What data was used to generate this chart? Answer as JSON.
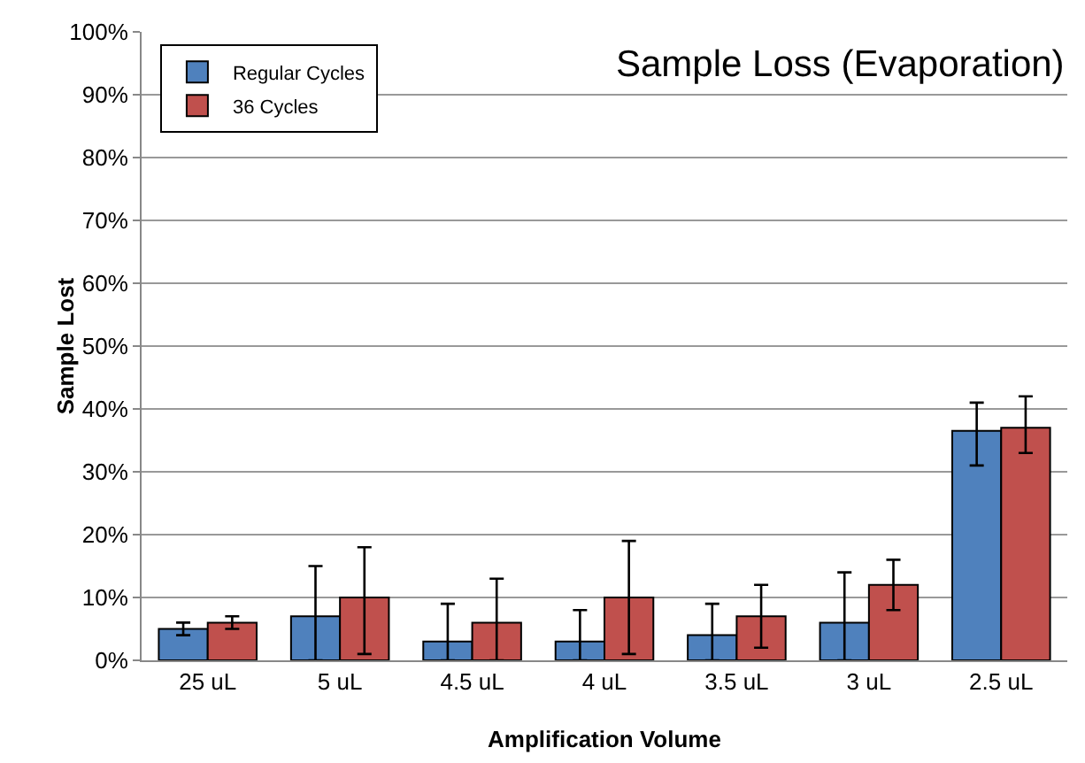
{
  "chart_data": {
    "type": "bar",
    "title": "Sample Loss (Evaporation)",
    "xlabel": "Amplification Volume",
    "ylabel": "Sample Lost",
    "categories": [
      "25 uL",
      "5 uL",
      "4.5 uL",
      "4 uL",
      "3.5 uL",
      "3 uL",
      "2.5 uL"
    ],
    "series": [
      {
        "name": "Regular Cycles",
        "color": "#4f81bd",
        "values": [
          5,
          7,
          3,
          3,
          4,
          6,
          36.5
        ],
        "errors": [
          [
            4,
            6
          ],
          [
            0,
            15
          ],
          [
            0,
            9
          ],
          [
            0,
            8
          ],
          [
            0,
            9
          ],
          [
            0,
            14
          ],
          [
            31,
            41
          ]
        ]
      },
      {
        "name": "36 Cycles",
        "color": "#c0504d",
        "values": [
          6,
          10,
          6,
          10,
          7,
          12,
          37
        ],
        "errors": [
          [
            5,
            7
          ],
          [
            1,
            18
          ],
          [
            0,
            13
          ],
          [
            1,
            19
          ],
          [
            2,
            12
          ],
          [
            8,
            16
          ],
          [
            33,
            42
          ]
        ]
      }
    ],
    "ylim": [
      0,
      100
    ],
    "yticks": [
      {
        "value": 0,
        "label": "0%"
      },
      {
        "value": 10,
        "label": "10%"
      },
      {
        "value": 20,
        "label": "20%"
      },
      {
        "value": 30,
        "label": "30%"
      },
      {
        "value": 40,
        "label": "40%"
      },
      {
        "value": 50,
        "label": "50%"
      },
      {
        "value": 60,
        "label": "60%"
      },
      {
        "value": 70,
        "label": "70%"
      },
      {
        "value": 80,
        "label": "80%"
      },
      {
        "value": 90,
        "label": "90%"
      },
      {
        "value": 100,
        "label": "100%"
      }
    ],
    "grid": "y",
    "legend": "top left"
  }
}
